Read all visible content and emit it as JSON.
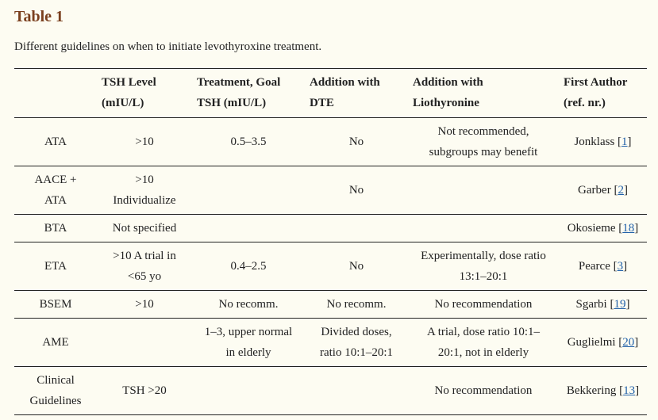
{
  "title": "Table 1",
  "caption": "Different guidelines on when to initiate levothyroxine treatment.",
  "headers": [
    "",
    [
      "TSH Level",
      "(mIU/L)"
    ],
    [
      "Treatment, Goal",
      "TSH (mIU/L)"
    ],
    [
      "Addition with",
      "DTE"
    ],
    [
      "Addition with",
      "Liothyronine"
    ],
    [
      "First Author",
      "(ref. nr.)"
    ]
  ],
  "rows": [
    {
      "org": [
        "ATA"
      ],
      "tsh": [
        ">10"
      ],
      "goal": [
        "0.5–3.5"
      ],
      "dte": [
        "No"
      ],
      "lio": [
        "Not recommended,",
        "subgroups may benefit"
      ],
      "author": "Jonklass",
      "ref": "1"
    },
    {
      "org": [
        "AACE +",
        "ATA"
      ],
      "tsh": [
        ">10",
        "Individualize"
      ],
      "goal": [],
      "dte": [
        "No"
      ],
      "lio": [],
      "author": "Garber",
      "ref": "2"
    },
    {
      "org": [
        "BTA"
      ],
      "tsh": [
        "Not specified"
      ],
      "goal": [],
      "dte": [],
      "lio": [],
      "author": "Okosieme",
      "ref": "18"
    },
    {
      "org": [
        "ETA"
      ],
      "tsh": [
        ">10 A trial in",
        "<65 yo"
      ],
      "goal": [
        "0.4–2.5"
      ],
      "dte": [
        "No"
      ],
      "lio": [
        "Experimentally, dose ratio",
        "13:1–20:1"
      ],
      "author": "Pearce",
      "ref": "3"
    },
    {
      "org": [
        "BSEM"
      ],
      "tsh": [
        ">10"
      ],
      "goal": [
        "No recomm."
      ],
      "dte": [
        "No recomm."
      ],
      "lio": [
        "No recommendation"
      ],
      "author": "Sgarbi",
      "ref": "19"
    },
    {
      "org": [
        "AME"
      ],
      "tsh": [],
      "goal": [
        "1–3, upper normal",
        "in elderly"
      ],
      "dte": [
        "Divided doses,",
        "ratio 10:1–20:1"
      ],
      "lio": [
        "A trial, dose ratio 10:1–",
        "20:1, not in elderly"
      ],
      "author": "Guglielmi",
      "ref": "20"
    },
    {
      "org": [
        "Clinical",
        "Guidelines"
      ],
      "tsh": [
        "TSH >20"
      ],
      "goal": [],
      "dte": [],
      "lio": [
        "No recommendation"
      ],
      "author": "Bekkering",
      "ref": "13"
    }
  ]
}
